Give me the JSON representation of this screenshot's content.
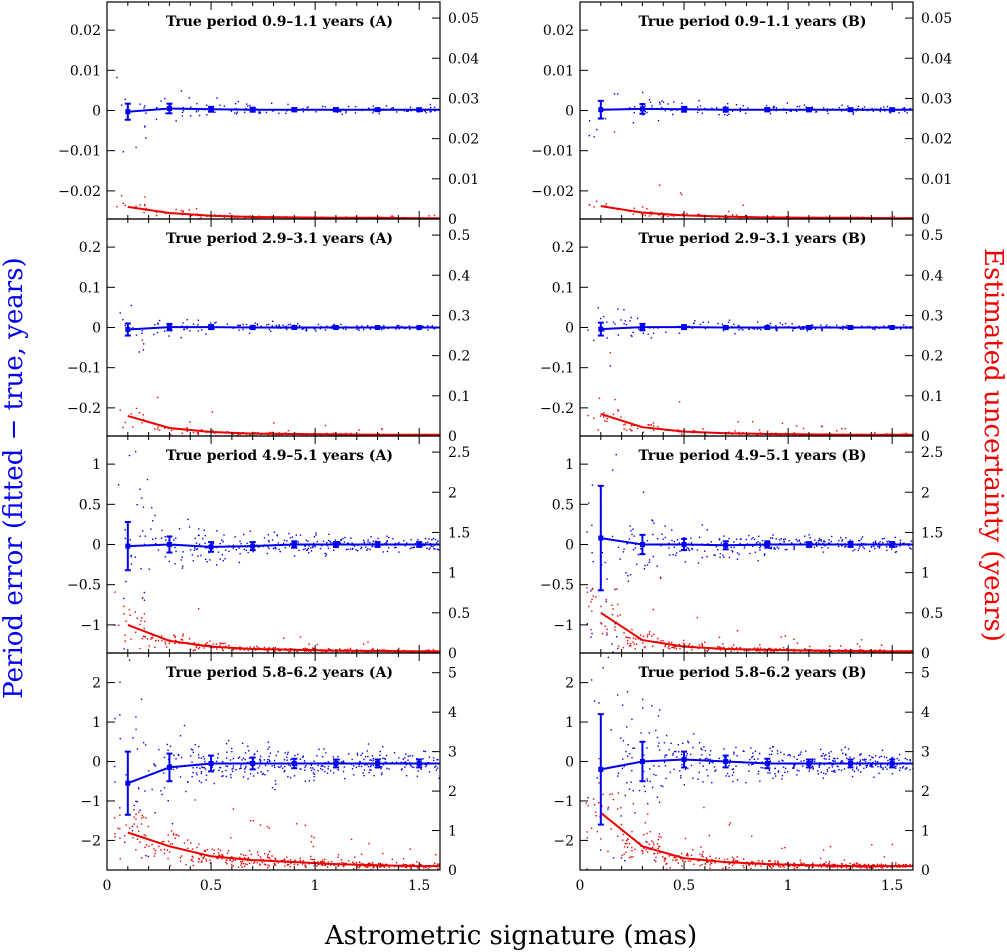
{
  "chart_data": {
    "type": "scatter",
    "xlabel": "Astrometric signature (mas)",
    "ylabel_left": "Period error (fitted − true, years)",
    "ylabel_right": "Estimated uncertainty (years)",
    "xlim": [
      0,
      1.6
    ],
    "x_ticks": [
      0,
      0.5,
      1,
      1.5
    ],
    "x_tick_labels": [
      "0",
      "0.5",
      "1",
      "1.5"
    ],
    "bin_centers": [
      0.1,
      0.3,
      0.5,
      0.7,
      0.9,
      1.1,
      1.3,
      1.5
    ],
    "colors": {
      "error_series": "#0000ee",
      "uncertainty_series": "#ee0000"
    },
    "rows": [
      {
        "left_ylim": [
          -0.027,
          0.027
        ],
        "left_ticks": [
          -0.02,
          -0.01,
          0,
          0.01,
          0.02
        ],
        "left_tick_labels": [
          "−0.02",
          "−0.01",
          "0",
          "0.01",
          "0.02"
        ],
        "right_ylim": [
          0,
          0.054
        ],
        "right_ticks": [
          0,
          0.01,
          0.02,
          0.03,
          0.04,
          0.05
        ],
        "right_tick_labels": [
          "0",
          "0.01",
          "0.02",
          "0.03",
          "0.04",
          "0.05"
        ],
        "panels": [
          {
            "title": "True period 0.9–1.1 years (A)",
            "mean_error": [
              -0.0003,
              0.0005,
              0.0003,
              0.0002,
              0.0002,
              0.0002,
              0.0002,
              0.0002
            ],
            "error_bars": [
              0.002,
              0.0012,
              0.0006,
              0.0005,
              0.0004,
              0.0004,
              0.0003,
              0.0003
            ],
            "mean_uncertainty": [
              0.003,
              0.0015,
              0.0008,
              0.0005,
              0.0004,
              0.0003,
              0.0003,
              0.0002
            ]
          },
          {
            "title": "True period 0.9–1.1 years (B)",
            "mean_error": [
              0.0002,
              0.0004,
              0.0003,
              0.0002,
              0.0002,
              0.0002,
              0.0002,
              0.0002
            ],
            "error_bars": [
              0.0022,
              0.0012,
              0.0006,
              0.0005,
              0.0004,
              0.0004,
              0.0003,
              0.0003
            ],
            "mean_uncertainty": [
              0.0032,
              0.0016,
              0.0009,
              0.0006,
              0.0004,
              0.0003,
              0.0003,
              0.0002
            ]
          }
        ]
      },
      {
        "left_ylim": [
          -0.27,
          0.27
        ],
        "left_ticks": [
          -0.2,
          -0.1,
          0,
          0.1,
          0.2
        ],
        "left_tick_labels": [
          "−0.2",
          "−0.1",
          "0",
          "0.1",
          "0.2"
        ],
        "right_ylim": [
          0,
          0.54
        ],
        "right_ticks": [
          0,
          0.1,
          0.2,
          0.3,
          0.4,
          0.5
        ],
        "right_tick_labels": [
          "0",
          "0.1",
          "0.2",
          "0.3",
          "0.4",
          "0.5"
        ],
        "panels": [
          {
            "title": "True period 2.9–3.1 years (A)",
            "mean_error": [
              -0.005,
              0.001,
              0.001,
              0.0,
              0.0,
              0.0,
              0.0,
              0.0
            ],
            "error_bars": [
              0.015,
              0.008,
              0.005,
              0.004,
              0.003,
              0.003,
              0.002,
              0.002
            ],
            "mean_uncertainty": [
              0.05,
              0.02,
              0.01,
              0.006,
              0.005,
              0.004,
              0.003,
              0.003
            ]
          },
          {
            "title": "True period 2.9–3.1 years (B)",
            "mean_error": [
              -0.004,
              0.001,
              0.001,
              0.0,
              0.0,
              0.0,
              0.0,
              0.0
            ],
            "error_bars": [
              0.016,
              0.008,
              0.005,
              0.004,
              0.003,
              0.003,
              0.002,
              0.002
            ],
            "mean_uncertainty": [
              0.055,
              0.022,
              0.011,
              0.007,
              0.005,
              0.004,
              0.003,
              0.003
            ]
          }
        ]
      },
      {
        "left_ylim": [
          -1.35,
          1.35
        ],
        "left_ticks": [
          -1,
          -0.5,
          0,
          0.5,
          1
        ],
        "left_tick_labels": [
          "−1",
          "−0.5",
          "0",
          "0.5",
          "1"
        ],
        "right_ylim": [
          0,
          2.7
        ],
        "right_ticks": [
          0,
          0.5,
          1,
          1.5,
          2,
          2.5
        ],
        "right_tick_labels": [
          "0",
          "0.5",
          "1",
          "1.5",
          "2",
          "2.5"
        ],
        "panels": [
          {
            "title": "True period 4.9–5.1 years (A)",
            "mean_error": [
              -0.02,
              0.0,
              -0.03,
              -0.02,
              0.0,
              0.0,
              0.0,
              0.0
            ],
            "error_bars": [
              0.3,
              0.1,
              0.06,
              0.05,
              0.04,
              0.03,
              0.03,
              0.03
            ],
            "mean_uncertainty": [
              0.35,
              0.15,
              0.08,
              0.05,
              0.04,
              0.03,
              0.025,
              0.02
            ]
          },
          {
            "title": "True period 4.9–5.1 years (B)",
            "mean_error": [
              0.08,
              0.0,
              0.0,
              -0.01,
              0.0,
              0.0,
              0.0,
              0.0
            ],
            "error_bars": [
              0.65,
              0.12,
              0.07,
              0.05,
              0.04,
              0.03,
              0.03,
              0.03
            ],
            "mean_uncertainty": [
              0.5,
              0.16,
              0.08,
              0.05,
              0.04,
              0.03,
              0.025,
              0.02
            ]
          }
        ]
      },
      {
        "left_ylim": [
          -2.75,
          2.75
        ],
        "left_ticks": [
          -2,
          -1,
          0,
          1,
          2
        ],
        "left_tick_labels": [
          "−2",
          "−1",
          "0",
          "1",
          "2"
        ],
        "right_ylim": [
          0,
          5.5
        ],
        "right_ticks": [
          0,
          1,
          2,
          3,
          4,
          5
        ],
        "right_tick_labels": [
          "0",
          "1",
          "2",
          "3",
          "4",
          "5"
        ],
        "panels": [
          {
            "title": "True period 5.8–6.2 years (A)",
            "mean_error": [
              -0.55,
              -0.15,
              -0.05,
              -0.05,
              -0.05,
              -0.05,
              -0.05,
              -0.05
            ],
            "error_bars": [
              0.8,
              0.35,
              0.2,
              0.15,
              0.12,
              0.1,
              0.1,
              0.1
            ],
            "mean_uncertainty": [
              0.95,
              0.6,
              0.35,
              0.25,
              0.2,
              0.15,
              0.12,
              0.1
            ]
          },
          {
            "title": "True period 5.8–6.2 years (B)",
            "mean_error": [
              -0.2,
              0.0,
              0.05,
              0.0,
              -0.05,
              -0.05,
              -0.05,
              -0.05
            ],
            "error_bars": [
              1.4,
              0.5,
              0.2,
              0.15,
              0.12,
              0.1,
              0.1,
              0.1
            ],
            "mean_uncertainty": [
              1.45,
              0.6,
              0.3,
              0.2,
              0.15,
              0.12,
              0.1,
              0.1
            ]
          }
        ]
      }
    ]
  }
}
